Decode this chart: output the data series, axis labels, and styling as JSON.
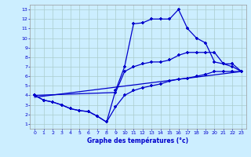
{
  "xlabel": "Graphe des températures (°c)",
  "background_color": "#cceeff",
  "grid_color": "#aacccc",
  "line_color": "#0000cc",
  "xlim": [
    -0.5,
    23.5
  ],
  "ylim": [
    0.5,
    13.5
  ],
  "xticks": [
    0,
    1,
    2,
    3,
    4,
    5,
    6,
    7,
    8,
    9,
    10,
    11,
    12,
    13,
    14,
    15,
    16,
    17,
    18,
    19,
    20,
    21,
    22,
    23
  ],
  "yticks": [
    1,
    2,
    3,
    4,
    5,
    6,
    7,
    8,
    9,
    10,
    11,
    12,
    13
  ],
  "line1_x": [
    0,
    1,
    2,
    3,
    4,
    5,
    6,
    7,
    8,
    9,
    10,
    11,
    12,
    13,
    14,
    15,
    16,
    17,
    18,
    19,
    20,
    21,
    22,
    23
  ],
  "line1_y": [
    4.0,
    3.5,
    3.3,
    3.0,
    2.6,
    2.4,
    2.3,
    1.8,
    1.2,
    4.5,
    7.0,
    11.5,
    11.6,
    12.0,
    12.0,
    12.0,
    13.0,
    11.0,
    10.0,
    9.5,
    7.5,
    7.3,
    7.0,
    6.5
  ],
  "line2_x": [
    0,
    9,
    10,
    11,
    12,
    13,
    14,
    15,
    16,
    17,
    18,
    19,
    20,
    21,
    22,
    23
  ],
  "line2_y": [
    4.0,
    4.3,
    6.5,
    7.0,
    7.3,
    7.5,
    7.5,
    7.7,
    8.2,
    8.5,
    8.5,
    8.5,
    8.5,
    7.3,
    7.3,
    6.5
  ],
  "line3_x": [
    0,
    23
  ],
  "line3_y": [
    3.8,
    6.5
  ],
  "line4_x": [
    0,
    1,
    2,
    3,
    4,
    5,
    6,
    7,
    8,
    9,
    10,
    11,
    12,
    13,
    14,
    15,
    16,
    17,
    18,
    19,
    20,
    21,
    22,
    23
  ],
  "line4_y": [
    4.0,
    3.5,
    3.3,
    3.0,
    2.6,
    2.4,
    2.3,
    1.8,
    1.2,
    2.8,
    4.0,
    4.5,
    4.8,
    5.0,
    5.2,
    5.5,
    5.7,
    5.8,
    6.0,
    6.2,
    6.5,
    6.5,
    6.5,
    6.5
  ]
}
